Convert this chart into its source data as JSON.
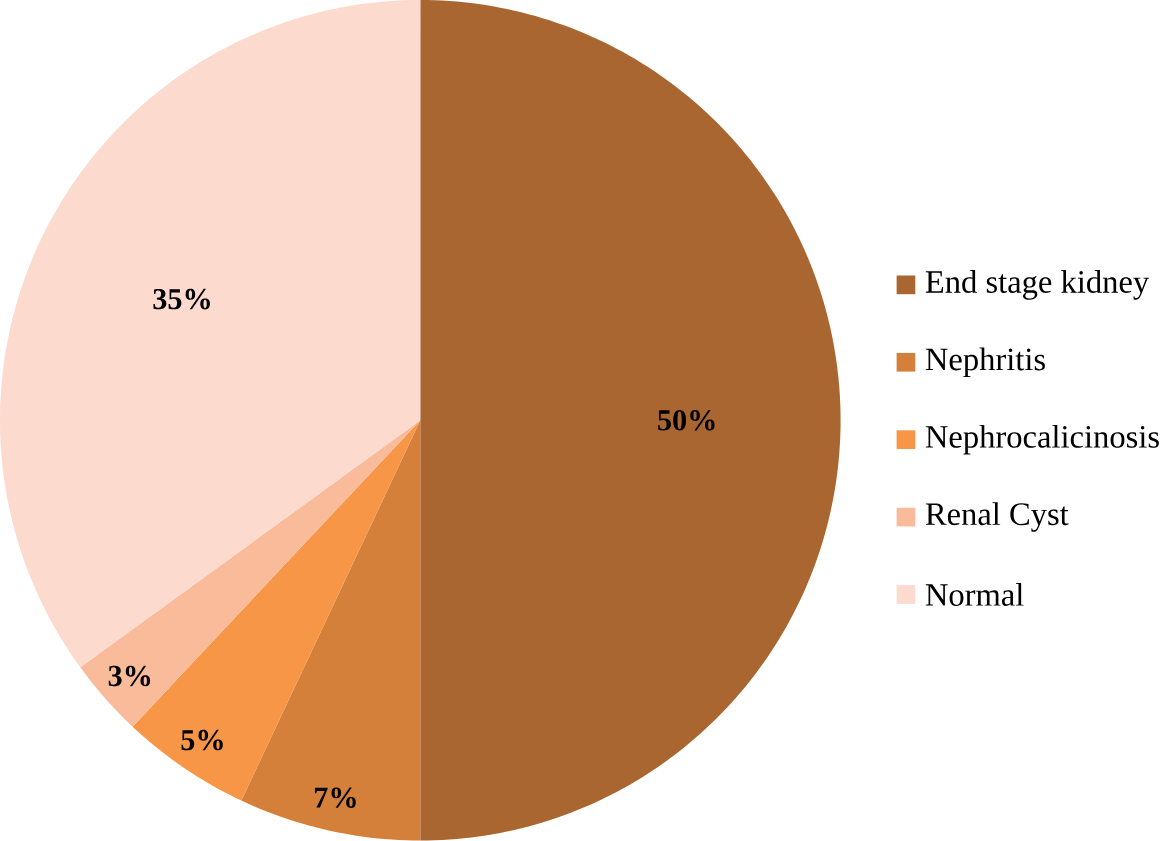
{
  "chart_data": {
    "type": "pie",
    "categories": [
      "End stage kidney",
      "Nephritis",
      "Nephrocalicinosis",
      "Renal Cyst",
      "Normal"
    ],
    "values": [
      50,
      7,
      5,
      3,
      35
    ],
    "colors": [
      "#aa6630",
      "#d5803a",
      "#f79646",
      "#f9bb9a",
      "#fcdacd"
    ],
    "value_labels": [
      "50%",
      "7%",
      "5%",
      "3%",
      "35%"
    ],
    "legend": "right"
  }
}
